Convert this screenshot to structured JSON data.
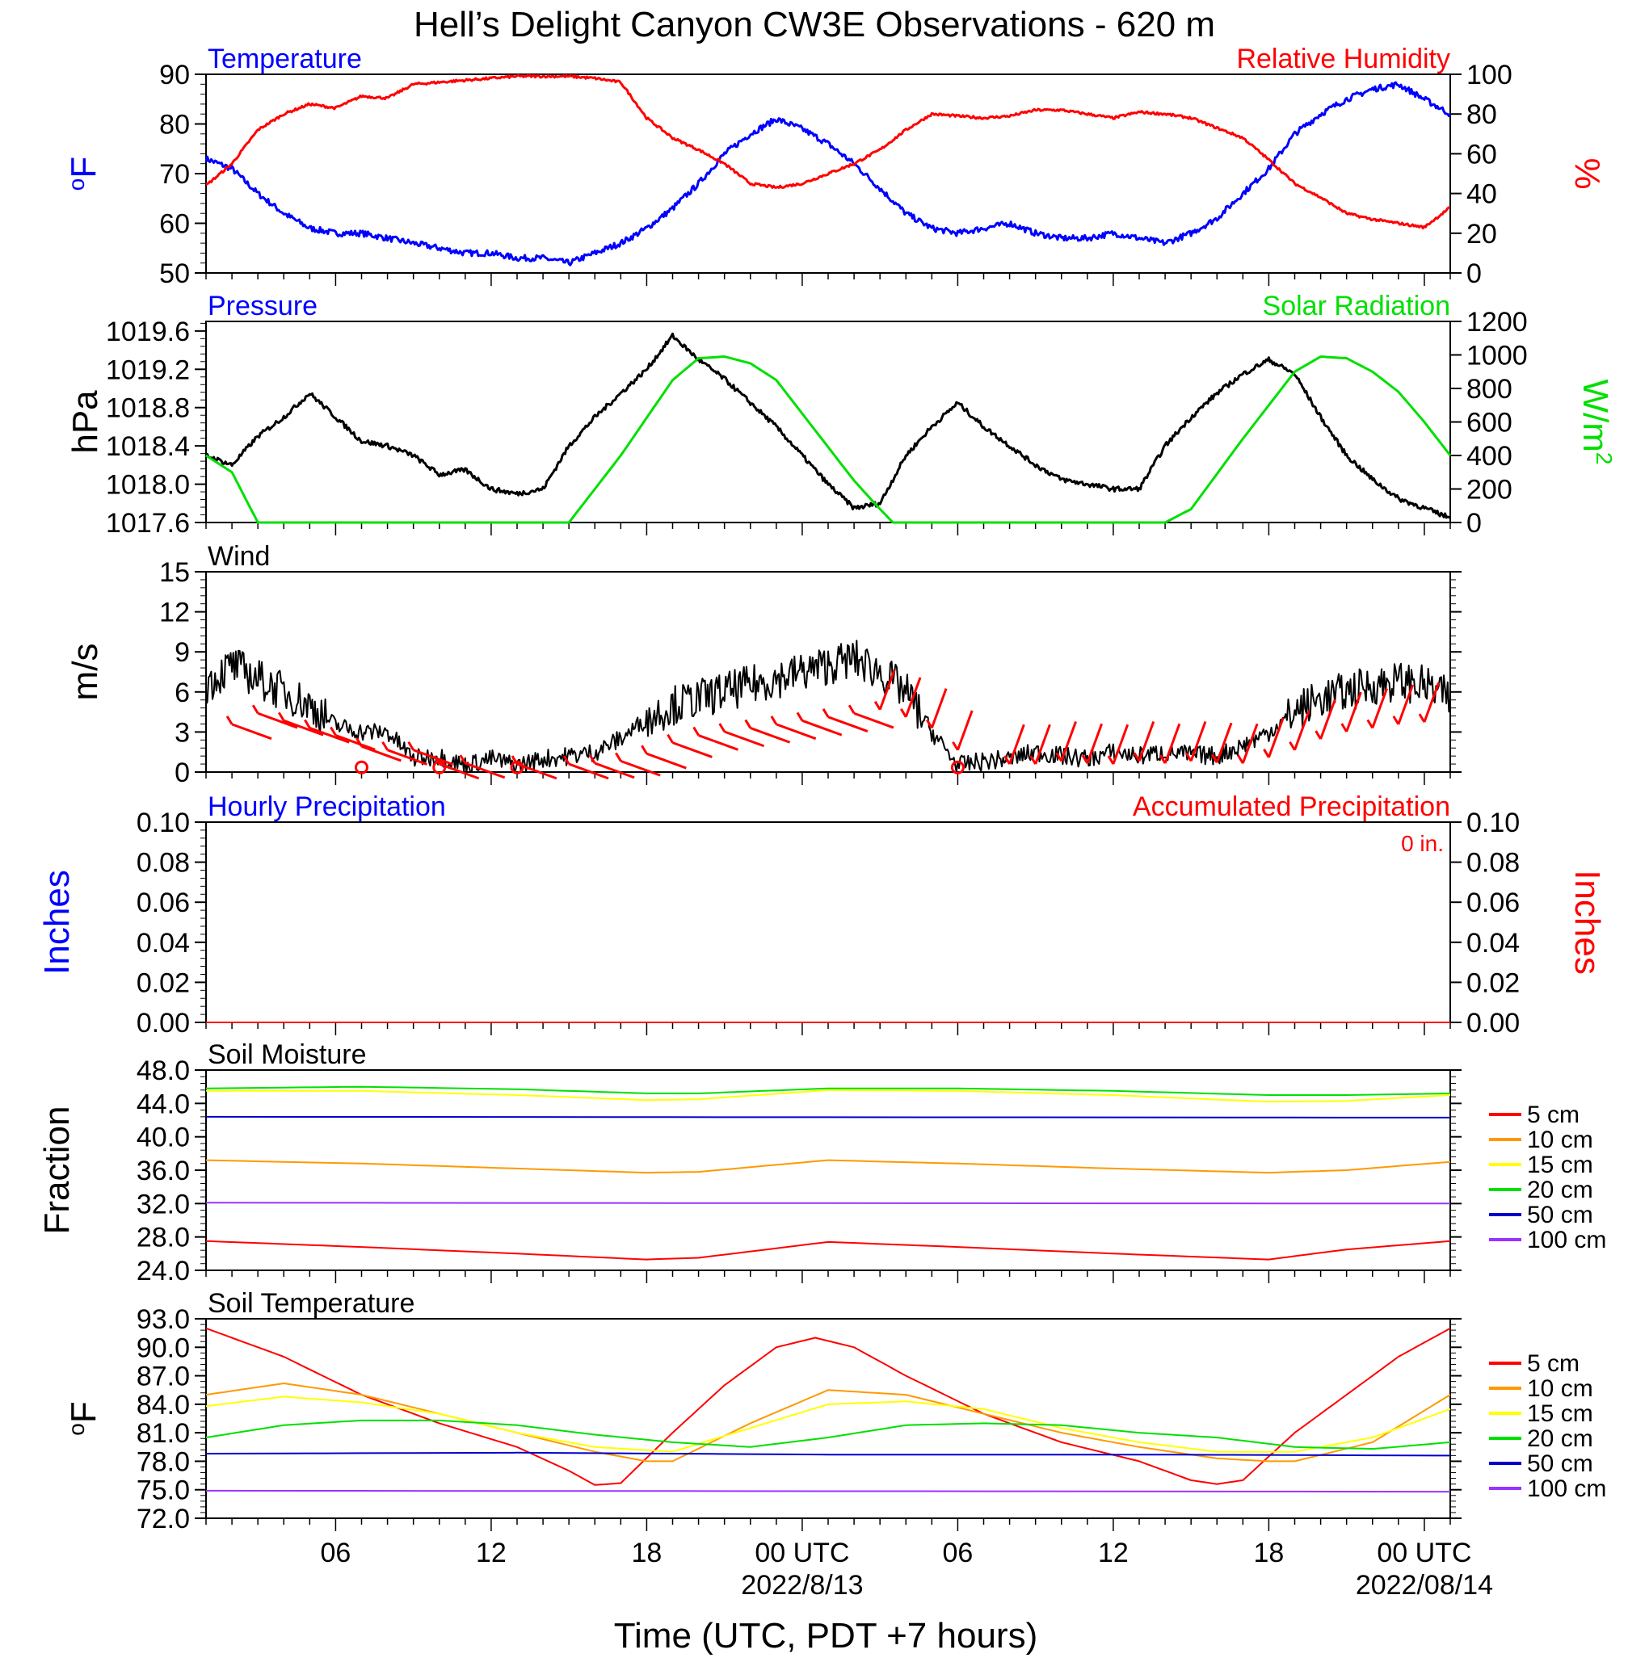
{
  "title": "Hell’s Delight Canyon CW3E Observations - 620 m",
  "colors": {
    "blue": "#0000ff",
    "red": "#ff0000",
    "green": "#00e000",
    "black": "#000000",
    "orange": "#ff9900",
    "yellow": "#ffff00",
    "purple": "#9933ff",
    "navy": "#0000cc"
  },
  "x_axis": {
    "label": "Time (UTC, PDT +7 hours)",
    "range_hours": [
      0,
      48
    ],
    "ticks": [
      {
        "h": 5,
        "label": "06",
        "date": ""
      },
      {
        "h": 11,
        "label": "12",
        "date": ""
      },
      {
        "h": 17,
        "label": "18",
        "date": ""
      },
      {
        "h": 23,
        "label": "00 UTC",
        "date": "2022/8/13"
      },
      {
        "h": 29,
        "label": "06",
        "date": ""
      },
      {
        "h": 35,
        "label": "12",
        "date": ""
      },
      {
        "h": 41,
        "label": "18",
        "date": ""
      },
      {
        "h": 47,
        "label": "00 UTC",
        "date": "2022/08/14"
      }
    ]
  },
  "chart_data": [
    {
      "id": "temp_rh",
      "type": "line",
      "left_title": "Temperature",
      "right_title": "Relative Humidity",
      "left_unit": "oF",
      "right_unit": "%",
      "left_ylim": [
        50,
        90
      ],
      "left_ticks": [
        "50",
        "60",
        "70",
        "80",
        "90"
      ],
      "right_ylim": [
        0,
        100
      ],
      "right_ticks": [
        "0",
        "20",
        "40",
        "60",
        "80",
        "100"
      ],
      "series": [
        {
          "axis": "left",
          "color": "blue",
          "width": 3,
          "x": [
            0,
            1,
            2,
            3,
            4,
            5,
            6,
            7,
            8,
            9,
            10,
            11,
            12,
            13,
            14,
            15,
            16,
            17,
            18,
            19,
            20,
            21,
            22,
            23,
            24,
            25,
            26,
            27,
            28,
            29,
            30,
            31,
            32,
            33,
            34,
            35,
            36,
            37,
            38,
            39,
            40,
            41,
            42,
            43,
            44,
            45,
            46,
            47,
            48
          ],
          "y": [
            73,
            71,
            66,
            62,
            59,
            58,
            58,
            57,
            56,
            55,
            54,
            54,
            53,
            53,
            52,
            54,
            56,
            59,
            63,
            68,
            74,
            78,
            81,
            79,
            76,
            72,
            67,
            62,
            59,
            58,
            59,
            60,
            58,
            57,
            57,
            58,
            57,
            56,
            58,
            61,
            66,
            71,
            78,
            82,
            85,
            87,
            88,
            85,
            82
          ]
        },
        {
          "axis": "right",
          "color": "red",
          "width": 3,
          "x": [
            0,
            1,
            2,
            3,
            4,
            5,
            6,
            7,
            8,
            9,
            10,
            11,
            12,
            13,
            14,
            15,
            16,
            17,
            18,
            19,
            20,
            21,
            22,
            23,
            24,
            25,
            26,
            27,
            28,
            29,
            30,
            31,
            32,
            33,
            34,
            35,
            36,
            37,
            38,
            39,
            40,
            41,
            42,
            43,
            44,
            45,
            46,
            47,
            48
          ],
          "y": [
            44,
            55,
            72,
            80,
            85,
            83,
            89,
            88,
            95,
            96,
            97,
            98,
            99,
            99,
            99,
            98,
            96,
            78,
            68,
            62,
            55,
            45,
            43,
            45,
            50,
            55,
            62,
            72,
            80,
            79,
            78,
            79,
            82,
            82,
            80,
            78,
            81,
            80,
            78,
            73,
            68,
            57,
            45,
            38,
            30,
            27,
            25,
            23,
            33
          ]
        }
      ]
    },
    {
      "id": "pressure_solar",
      "type": "line",
      "left_title": "Pressure",
      "right_title": "Solar Radiation",
      "left_unit": "hPa",
      "right_unit": "W/m2",
      "left_ylim": [
        1017.6,
        1019.7
      ],
      "left_ticks": [
        "1017.6",
        "1018.0",
        "1018.4",
        "1018.8",
        "1019.2",
        "1019.6"
      ],
      "right_ylim": [
        0,
        1200
      ],
      "right_ticks": [
        "0",
        "200",
        "400",
        "600",
        "800",
        "1000",
        "1200"
      ],
      "series": [
        {
          "axis": "left",
          "color": "black",
          "width": 3,
          "x": [
            0,
            1,
            2,
            3,
            4,
            5,
            6,
            7,
            8,
            9,
            10,
            11,
            12,
            13,
            14,
            15,
            16,
            17,
            18,
            19,
            20,
            21,
            22,
            23,
            24,
            25,
            26,
            27,
            28,
            29,
            30,
            31,
            32,
            33,
            34,
            35,
            36,
            37,
            38,
            39,
            40,
            41,
            42,
            43,
            44,
            45,
            46,
            47,
            48
          ],
          "y": [
            1018.3,
            1018.2,
            1018.5,
            1018.7,
            1018.95,
            1018.7,
            1018.45,
            1018.4,
            1018.3,
            1018.1,
            1018.15,
            1017.95,
            1017.9,
            1017.95,
            1018.4,
            1018.7,
            1018.95,
            1019.2,
            1019.55,
            1019.3,
            1019.1,
            1018.85,
            1018.6,
            1018.3,
            1018.0,
            1017.75,
            1017.8,
            1018.3,
            1018.6,
            1018.85,
            1018.6,
            1018.4,
            1018.2,
            1018.05,
            1018.0,
            1017.95,
            1017.95,
            1018.4,
            1018.7,
            1018.95,
            1019.15,
            1019.3,
            1019.15,
            1018.7,
            1018.3,
            1018.05,
            1017.85,
            1017.75,
            1017.65
          ]
        },
        {
          "axis": "right",
          "color": "green",
          "width": 3,
          "x": [
            0,
            1,
            1.5,
            2,
            3,
            10,
            12,
            13,
            14,
            16,
            18,
            19,
            20,
            21,
            22,
            23,
            24,
            25,
            26,
            26.5,
            27,
            36,
            37,
            38,
            40,
            42,
            43,
            44,
            45,
            46,
            47,
            48
          ],
          "y": [
            400,
            300,
            150,
            0,
            0,
            0,
            0,
            0,
            0,
            400,
            850,
            980,
            990,
            950,
            850,
            650,
            450,
            250,
            80,
            0,
            0,
            0,
            0,
            80,
            500,
            900,
            990,
            980,
            900,
            780,
            600,
            400
          ]
        }
      ]
    },
    {
      "id": "wind",
      "type": "line",
      "left_title": "Wind",
      "left_unit": "m/s",
      "left_ylim": [
        0,
        15
      ],
      "left_ticks": [
        "0",
        "3",
        "6",
        "9",
        "12",
        "15"
      ],
      "series": [
        {
          "axis": "left",
          "color": "black",
          "width": 2,
          "x": [
            0,
            1,
            2,
            3,
            4,
            5,
            6,
            7,
            8,
            9,
            10,
            11,
            12,
            13,
            14,
            15,
            16,
            17,
            18,
            19,
            20,
            21,
            22,
            23,
            24,
            25,
            26,
            27,
            28,
            29,
            30,
            31,
            32,
            33,
            34,
            35,
            36,
            37,
            38,
            39,
            40,
            41,
            42,
            43,
            44,
            45,
            46,
            47,
            48
          ],
          "y": [
            6.5,
            8,
            7,
            6,
            5,
            3.5,
            3,
            3,
            1,
            1.2,
            0.5,
            1,
            0.5,
            1,
            1.2,
            1.5,
            2.5,
            4,
            5,
            5.5,
            6,
            6.5,
            7,
            7.5,
            8,
            8.5,
            7.5,
            6,
            3,
            0.5,
            0.8,
            1,
            1.5,
            1.2,
            1,
            1.5,
            1.2,
            1.5,
            1.3,
            1.2,
            2,
            3,
            4.5,
            5.5,
            6,
            6.5,
            6.8,
            6.5,
            5.5
          ]
        }
      ],
      "calm_markers_hours": [
        6,
        9,
        12,
        29
      ]
    },
    {
      "id": "precip",
      "type": "line",
      "left_title": "Hourly Precipitation",
      "right_title": "Accumulated Precipitation",
      "left_unit": "Inches",
      "right_unit": "Inches",
      "annotation": "0 in.",
      "left_ylim": [
        0,
        0.1
      ],
      "left_ticks": [
        "0.00",
        "0.02",
        "0.04",
        "0.06",
        "0.08",
        "0.10"
      ],
      "right_ylim": [
        0,
        0.1
      ],
      "right_ticks": [
        "0.00",
        "0.02",
        "0.04",
        "0.06",
        "0.08",
        "0.10"
      ],
      "series": [
        {
          "axis": "left",
          "color": "blue",
          "width": 2,
          "x": [
            0,
            48
          ],
          "y": [
            0,
            0
          ]
        },
        {
          "axis": "right",
          "color": "red",
          "width": 2,
          "x": [
            0,
            48
          ],
          "y": [
            0,
            0
          ]
        }
      ]
    },
    {
      "id": "soil_moisture",
      "type": "line",
      "left_title": "Soil Moisture",
      "left_unit": "Fraction",
      "left_ylim": [
        24,
        48
      ],
      "left_ticks": [
        "24.0",
        "28.0",
        "32.0",
        "36.0",
        "40.0",
        "44.0",
        "48.0"
      ],
      "legend": [
        "5 cm",
        "10 cm",
        "15 cm",
        "20 cm",
        "50 cm",
        "100 cm"
      ],
      "series": [
        {
          "name": "5 cm",
          "color": "red",
          "width": 2,
          "x": [
            0,
            6,
            12,
            17,
            19,
            24,
            29,
            35,
            41,
            44,
            48
          ],
          "y": [
            27.5,
            26.8,
            26,
            25.3,
            25.5,
            27.4,
            26.8,
            26,
            25.3,
            26.5,
            27.5
          ]
        },
        {
          "name": "10 cm",
          "color": "orange",
          "width": 2,
          "x": [
            0,
            6,
            12,
            17,
            19,
            24,
            29,
            35,
            41,
            44,
            48
          ],
          "y": [
            37.2,
            36.8,
            36.2,
            35.7,
            35.8,
            37.2,
            36.8,
            36.2,
            35.7,
            36,
            37
          ]
        },
        {
          "name": "15 cm",
          "color": "yellow",
          "width": 2,
          "x": [
            0,
            6,
            12,
            17,
            19,
            24,
            29,
            35,
            41,
            44,
            48
          ],
          "y": [
            45.5,
            45.5,
            45,
            44.4,
            44.5,
            45.6,
            45.5,
            45,
            44.2,
            44.3,
            45
          ]
        },
        {
          "name": "20 cm",
          "color": "green",
          "width": 2,
          "x": [
            0,
            6,
            12,
            17,
            19,
            24,
            29,
            35,
            41,
            44,
            48
          ],
          "y": [
            45.8,
            46,
            45.7,
            45.2,
            45.2,
            45.8,
            45.8,
            45.5,
            45,
            45,
            45.2
          ]
        },
        {
          "name": "50 cm",
          "color": "navy",
          "width": 2,
          "x": [
            0,
            48
          ],
          "y": [
            42.4,
            42.3
          ]
        },
        {
          "name": "100 cm",
          "color": "purple",
          "width": 2,
          "x": [
            0,
            48
          ],
          "y": [
            32.1,
            32.0
          ]
        }
      ]
    },
    {
      "id": "soil_temp",
      "type": "line",
      "left_title": "Soil Temperature",
      "left_unit": "oF",
      "left_ylim": [
        72,
        93
      ],
      "left_ticks": [
        "72.0",
        "75.0",
        "78.0",
        "81.0",
        "84.0",
        "87.0",
        "90.0",
        "93.0"
      ],
      "legend": [
        "5 cm",
        "10 cm",
        "15 cm",
        "20 cm",
        "50 cm",
        "100 cm"
      ],
      "series": [
        {
          "name": "5 cm",
          "color": "red",
          "width": 2,
          "x": [
            0,
            3,
            6,
            9,
            12,
            14,
            15,
            16,
            18,
            20,
            22,
            23.5,
            25,
            27,
            30,
            33,
            36,
            38,
            39,
            40,
            42,
            44,
            46,
            48
          ],
          "y": [
            92,
            89,
            85,
            82,
            79.5,
            77,
            75.5,
            75.7,
            81,
            86,
            90,
            91,
            90,
            87,
            83,
            80,
            78,
            76,
            75.6,
            76,
            81,
            85,
            89,
            92
          ]
        },
        {
          "name": "10 cm",
          "color": "orange",
          "width": 2,
          "x": [
            0,
            3,
            6,
            9,
            12,
            15,
            17,
            18,
            21,
            24,
            27,
            30,
            33,
            36,
            39,
            41,
            42,
            45,
            48
          ],
          "y": [
            85,
            86.2,
            85,
            83,
            81,
            79,
            78,
            78,
            82,
            85.5,
            85,
            83,
            81,
            79.5,
            78.3,
            78,
            78,
            80,
            85
          ]
        },
        {
          "name": "15 cm",
          "color": "yellow",
          "width": 2,
          "x": [
            0,
            3,
            6,
            9,
            12,
            15,
            18,
            21,
            24,
            27,
            30,
            33,
            36,
            39,
            42,
            45,
            48
          ],
          "y": [
            83.8,
            84.8,
            84.2,
            83,
            81,
            79.5,
            79,
            81.5,
            84,
            84.3,
            83.5,
            81.5,
            80,
            79,
            79,
            80.5,
            83.5
          ]
        },
        {
          "name": "20 cm",
          "color": "green",
          "width": 2,
          "x": [
            0,
            3,
            6,
            9,
            12,
            15,
            18,
            21,
            24,
            27,
            30,
            33,
            36,
            39,
            42,
            45,
            48
          ],
          "y": [
            80.5,
            81.8,
            82.3,
            82.3,
            81.8,
            80.8,
            80,
            79.5,
            80.5,
            81.8,
            82,
            81.8,
            81,
            80.5,
            79.5,
            79.3,
            80
          ]
        },
        {
          "name": "50 cm",
          "color": "navy",
          "width": 2,
          "x": [
            0,
            12,
            24,
            36,
            48
          ],
          "y": [
            78.8,
            78.9,
            78.7,
            78.7,
            78.6
          ]
        },
        {
          "name": "100 cm",
          "color": "purple",
          "width": 2,
          "x": [
            0,
            48
          ],
          "y": [
            74.9,
            74.8
          ]
        }
      ]
    }
  ]
}
